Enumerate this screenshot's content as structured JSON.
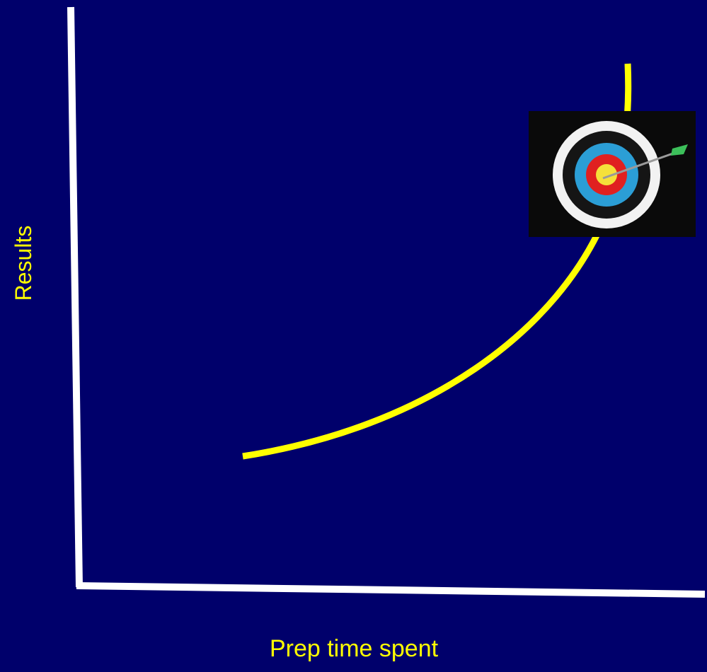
{
  "diagram": {
    "y_axis_label": "Results",
    "x_axis_label": "Prep time spent"
  }
}
